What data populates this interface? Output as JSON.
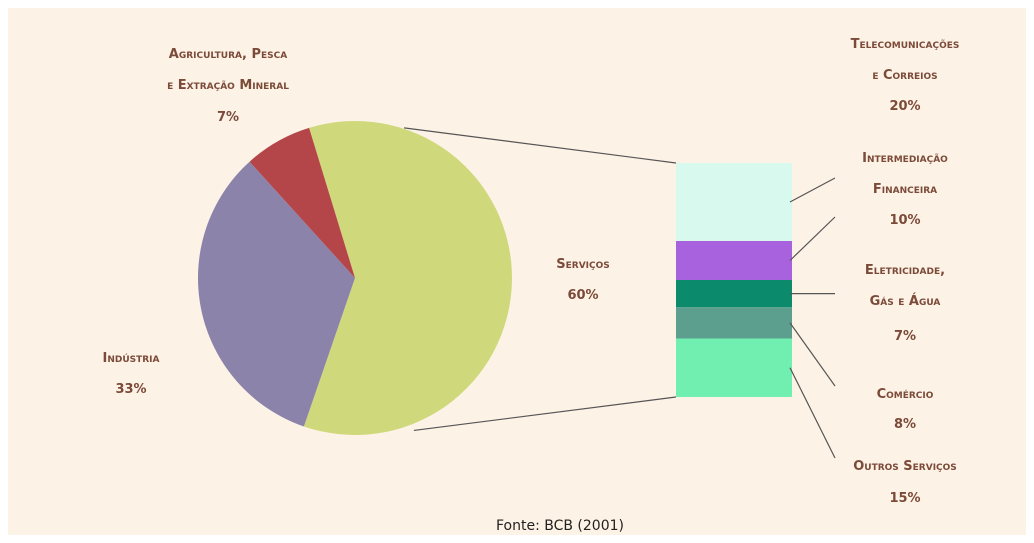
{
  "chart_data": {
    "type": "pie",
    "categories": [
      "Serviços",
      "Indústria",
      "Agricultura, Pesca\ne Extração Mineral"
    ],
    "values": [
      60,
      33,
      7
    ],
    "value_labels": [
      "60%",
      "33%",
      "7%"
    ],
    "colors": [
      "#cfd97c",
      "#8b83aa",
      "#b4464a"
    ],
    "breakdown": {
      "type": "bar",
      "categories": [
        "Telecomunicações\ne Correios",
        "Intermediação\nFinanceira",
        "Eletricidade,\nGás e Água",
        "Comércio",
        "Outros Serviços"
      ],
      "values": [
        20,
        10,
        7,
        8,
        15
      ],
      "value_labels": [
        "20%",
        "10%",
        "7%",
        "8%",
        "15%"
      ],
      "colors": [
        "#d8faee",
        "#a862de",
        "#0c8a6c",
        "#5c9f8f",
        "#70efb1"
      ]
    },
    "source": "Fonte: BCB (2001)"
  }
}
